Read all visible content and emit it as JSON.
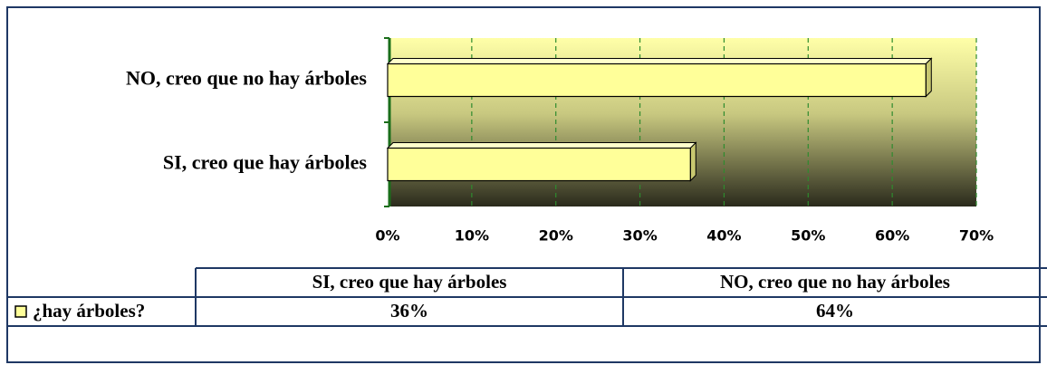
{
  "chart_data": {
    "type": "bar",
    "orientation": "horizontal",
    "categories": [
      "SI, creo que hay árboles",
      "NO, creo que no hay árboles"
    ],
    "series": [
      {
        "name": "¿hay árboles?",
        "color": "#ffff99",
        "values": [
          36,
          64
        ],
        "value_labels": [
          "36%",
          "64%"
        ]
      }
    ],
    "xlim": [
      0,
      70
    ],
    "xticks": [
      {
        "value": 0,
        "label": "0%"
      },
      {
        "value": 10,
        "label": "10%"
      },
      {
        "value": 20,
        "label": "20%"
      },
      {
        "value": 30,
        "label": "30%"
      },
      {
        "value": 40,
        "label": "40%"
      },
      {
        "value": 50,
        "label": "50%"
      },
      {
        "value": 60,
        "label": "60%"
      },
      {
        "value": 70,
        "label": "70%"
      }
    ],
    "grid": true,
    "data_table": true
  }
}
